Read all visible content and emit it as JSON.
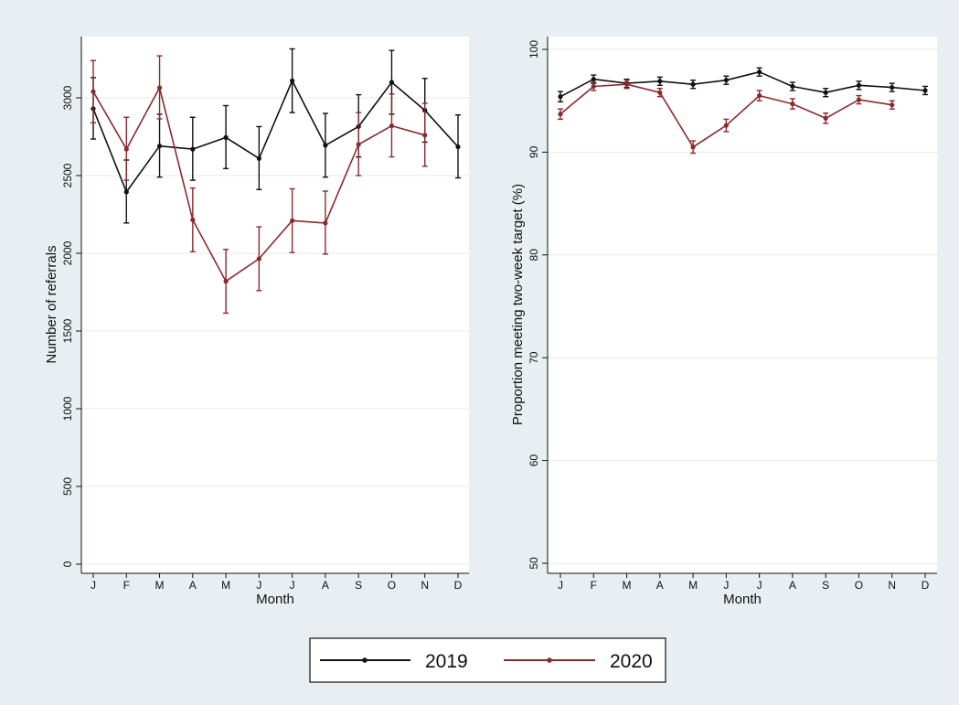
{
  "legend": {
    "items": [
      {
        "label": "2019",
        "color": "#111111"
      },
      {
        "label": "2020",
        "color": "#8b2a2e"
      }
    ]
  },
  "chart_data": [
    {
      "type": "line",
      "title": "",
      "xlabel": "Month",
      "ylabel": "Number of referrals",
      "categories": [
        "J",
        "F",
        "M",
        "A",
        "M",
        "J",
        "J",
        "A",
        "S",
        "O",
        "N",
        "D"
      ],
      "ylim": [
        0,
        3200
      ],
      "yticks": [
        0,
        500,
        1000,
        1500,
        2000,
        2500,
        3000
      ],
      "ytick_labels": [
        "0",
        "500",
        "1000",
        "1500",
        "2000",
        "2500",
        "3000"
      ],
      "grid": true,
      "series": [
        {
          "name": "2019",
          "color": "#111111",
          "values": [
            2930,
            2395,
            2690,
            2670,
            2745,
            2610,
            3110,
            2695,
            2815,
            3100,
            2920,
            2685
          ],
          "lower": [
            2735,
            2195,
            2490,
            2470,
            2545,
            2410,
            2905,
            2490,
            2620,
            2895,
            2715,
            2485
          ],
          "upper": [
            3130,
            2600,
            2895,
            2875,
            2950,
            2815,
            3315,
            2900,
            3020,
            3305,
            3125,
            2890
          ]
        },
        {
          "name": "2020",
          "color": "#8b2a2e",
          "values": [
            3040,
            2670,
            3065,
            2215,
            1820,
            1965,
            2210,
            2195,
            2700,
            2820,
            2760,
            null
          ],
          "lower": [
            2840,
            2470,
            2865,
            2010,
            1615,
            1760,
            2005,
            1995,
            2500,
            2620,
            2560,
            null
          ],
          "upper": [
            3240,
            2875,
            3270,
            2420,
            2025,
            2170,
            2415,
            2400,
            2905,
            3025,
            2965,
            null
          ]
        }
      ]
    },
    {
      "type": "line",
      "title": "",
      "xlabel": "Month",
      "ylabel": "Proportion meeting two-week target (%)",
      "categories": [
        "J",
        "F",
        "M",
        "A",
        "M",
        "J",
        "J",
        "A",
        "S",
        "O",
        "N",
        "D"
      ],
      "ylim": [
        50,
        100
      ],
      "yticks": [
        50,
        60,
        70,
        80,
        90,
        100
      ],
      "ytick_labels": [
        "50",
        "60",
        "70",
        "80",
        "90",
        "100"
      ],
      "grid": true,
      "series": [
        {
          "name": "2019",
          "color": "#111111",
          "values": [
            95.4,
            97.1,
            96.7,
            96.9,
            96.6,
            97.0,
            97.8,
            96.4,
            95.8,
            96.5,
            96.3,
            96.0
          ],
          "lower": [
            94.9,
            96.7,
            96.3,
            96.5,
            96.2,
            96.6,
            97.4,
            96.0,
            95.4,
            96.1,
            95.9,
            95.6
          ],
          "upper": [
            95.9,
            97.5,
            97.1,
            97.3,
            97.0,
            97.4,
            98.2,
            96.8,
            96.2,
            96.9,
            96.7,
            96.4
          ]
        },
        {
          "name": "2020",
          "color": "#8b2a2e",
          "values": [
            93.7,
            96.4,
            96.6,
            95.8,
            90.5,
            92.6,
            95.5,
            94.7,
            93.3,
            95.1,
            94.6,
            null
          ],
          "lower": [
            93.2,
            96.0,
            96.2,
            95.4,
            89.9,
            92.0,
            95.0,
            94.2,
            92.8,
            94.7,
            94.2,
            null
          ],
          "upper": [
            94.2,
            96.8,
            97.0,
            96.2,
            91.1,
            93.2,
            96.0,
            95.2,
            93.8,
            95.5,
            95.0,
            null
          ]
        }
      ]
    }
  ]
}
